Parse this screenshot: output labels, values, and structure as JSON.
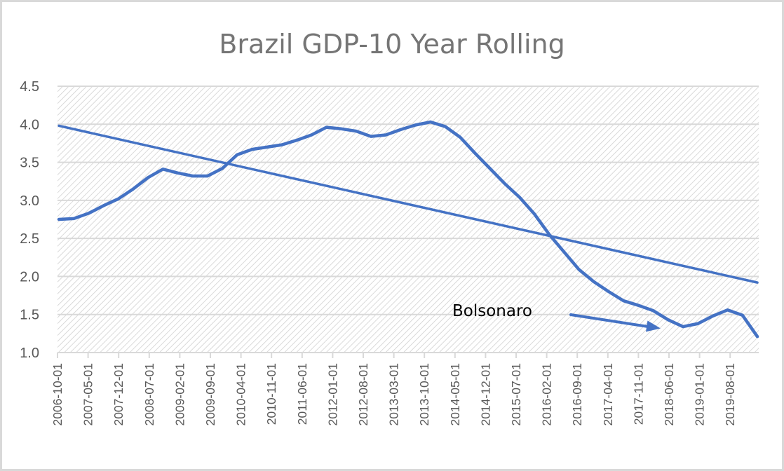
{
  "chart_data": {
    "type": "line",
    "title": "Brazil GDP-10 Year Rolling",
    "xlabel": "",
    "ylabel": "",
    "ylim": [
      1.0,
      4.5
    ],
    "yticks": [
      "1.0",
      "1.5",
      "2.0",
      "2.5",
      "3.0",
      "3.5",
      "4.0",
      "4.5"
    ],
    "ytick_values": [
      1.0,
      1.5,
      2.0,
      2.5,
      3.0,
      3.5,
      4.0,
      4.5
    ],
    "xtick_labels": [
      "2006-10-01",
      "2007-05-01",
      "2007-12-01",
      "2008-07-01",
      "2009-02-01",
      "2009-09-01",
      "2010-04-01",
      "2010-11-01",
      "2011-06-01",
      "2012-01-01",
      "2012-08-01",
      "2013-03-01",
      "2013-10-01",
      "2014-05-01",
      "2014-12-01",
      "2015-07-01",
      "2016-02-01",
      "2016-09-01",
      "2017-04-01",
      "2017-11-01",
      "2018-06-01",
      "2019-01-01",
      "2019-08-01"
    ],
    "grid": true,
    "legend": "none",
    "series": [
      {
        "name": "Brazil GDP 10 Year Rolling",
        "color": "#4472C4",
        "values": [
          2.75,
          2.76,
          2.83,
          2.93,
          3.02,
          3.15,
          3.3,
          3.41,
          3.36,
          3.32,
          3.32,
          3.42,
          3.6,
          3.67,
          3.7,
          3.73,
          3.79,
          3.86,
          3.96,
          3.94,
          3.91,
          3.84,
          3.86,
          3.93,
          3.99,
          4.03,
          3.97,
          3.83,
          3.62,
          3.42,
          3.22,
          3.04,
          2.82,
          2.55,
          2.32,
          2.09,
          1.93,
          1.8,
          1.68,
          1.62,
          1.55,
          1.43,
          1.34,
          1.38,
          1.48,
          1.56,
          1.49,
          1.21
        ]
      },
      {
        "name": "Linear trend",
        "color": "#4472C4",
        "type": "trendline",
        "start": 3.98,
        "end": 1.92
      }
    ],
    "annotations": [
      {
        "text": "Bolsonaro",
        "type": "arrow-label",
        "color": "#4472C4"
      }
    ]
  },
  "colors": {
    "line": "#4472C4",
    "grid": "#d9d9d9",
    "hatch": "#d4d4d4",
    "axis_text": "#595959",
    "title_text": "#757575"
  }
}
